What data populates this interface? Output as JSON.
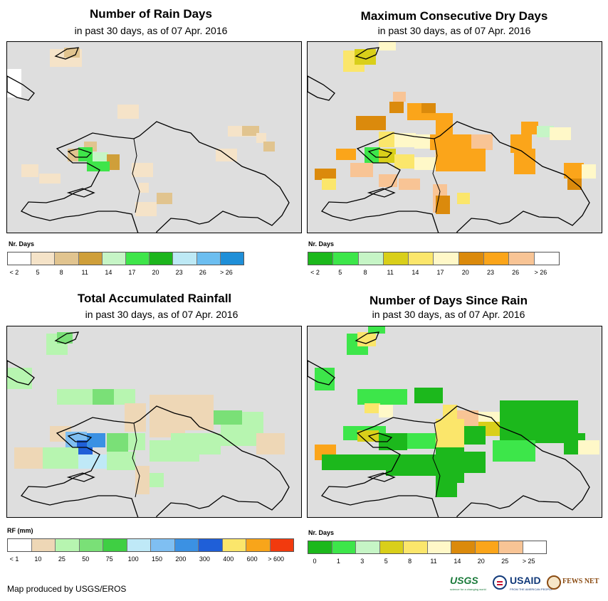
{
  "panels": [
    {
      "key": "rain_days",
      "title": "Number of Rain Days",
      "subtitle": "in past 30 days, as of 07 Apr. 2016",
      "legend_label": "Nr. Days",
      "legend_colors": [
        "#ffffff",
        "#f5e3c8",
        "#e1c48f",
        "#cf9f3a",
        "#c6f5c6",
        "#3fe54a",
        "#1db51d",
        "#bde9f5",
        "#6cbef0",
        "#1f8fd8"
      ],
      "legend_ticks": [
        "< 2",
        "5",
        "8",
        "11",
        "14",
        "17",
        "20",
        "23",
        "26",
        "> 26"
      ]
    },
    {
      "key": "dry_days",
      "title": "Maximum Consecutive Dry Days",
      "subtitle": "in past 30 days, as of 07 Apr. 2016",
      "legend_label": "Nr. Days",
      "legend_colors": [
        "#1cb81c",
        "#3de64a",
        "#c6f5c6",
        "#d9cf1a",
        "#fbe66b",
        "#fff8c8",
        "#db8a0c",
        "#fba51a",
        "#f8c495",
        "#ffffff"
      ],
      "legend_ticks": [
        "< 2",
        "5",
        "8",
        "11",
        "14",
        "17",
        "20",
        "23",
        "26",
        "> 26"
      ]
    },
    {
      "key": "rainfall",
      "title": "Total Accumulated Rainfall",
      "subtitle": "in past 30 days, as of 07 Apr. 2016",
      "legend_label": "RF (mm)",
      "legend_colors": [
        "#ffffff",
        "#eed7b6",
        "#b7f5b0",
        "#7ae077",
        "#3fcf43",
        "#bfe9f7",
        "#7fbff2",
        "#3b91e3",
        "#1f5fd8",
        "#fbe66b",
        "#f8a51a",
        "#f23a0e"
      ],
      "legend_ticks": [
        "< 1",
        "10",
        "25",
        "50",
        "75",
        "100",
        "150",
        "200",
        "300",
        "400",
        "600",
        "> 600"
      ]
    },
    {
      "key": "since_rain",
      "title": "Number of Days Since Rain",
      "subtitle": "in past 30 days, as of 07 Apr. 2016",
      "legend_label": "Nr. Days",
      "legend_colors": [
        "#1cb81c",
        "#3de64a",
        "#c6f5c6",
        "#d9cf1a",
        "#fbe66b",
        "#fff8c8",
        "#db8a0c",
        "#fba51a",
        "#f8c495",
        "#ffffff"
      ],
      "legend_ticks": [
        "0",
        "1",
        "3",
        "5",
        "8",
        "11",
        "14",
        "20",
        "25",
        "> 25"
      ]
    }
  ],
  "footer": "Map produced by USGS/EROS",
  "logos": {
    "usgs": "USGS",
    "usgs_tagline": "science for a changing world",
    "usaid": "USAID",
    "usaid_tagline": "FROM THE AMERICAN PEOPLE",
    "fewsnet": "FEWS NET"
  },
  "colors": {
    "ocean": "#dedede",
    "land": "#ffffff",
    "border": "#000000",
    "usgs_green": "#1a7a3a",
    "usaid_blue": "#123a7a",
    "usaid_red": "#c8102e",
    "fews_brown": "#8a4b12"
  }
}
